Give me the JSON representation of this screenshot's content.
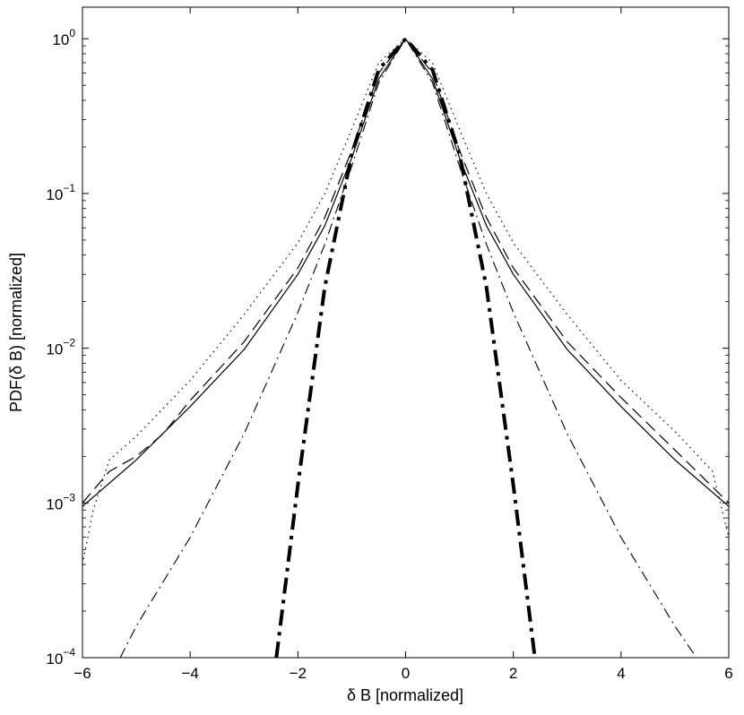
{
  "chart_data": {
    "type": "line",
    "title": "",
    "xlabel": "δ B [normalized]",
    "ylabel": "PDF(δ B) [normalized]",
    "xlim": [
      -6,
      6
    ],
    "ylim": [
      0.0001,
      1.6
    ],
    "yscale": "log",
    "grid": false,
    "legend": "none",
    "x_ticks": [
      {
        "value": -6,
        "label": "−6"
      },
      {
        "value": -4,
        "label": "−4"
      },
      {
        "value": -2,
        "label": "−2"
      },
      {
        "value": 0,
        "label": "0"
      },
      {
        "value": 2,
        "label": "2"
      },
      {
        "value": 4,
        "label": "4"
      },
      {
        "value": 6,
        "label": "6"
      }
    ],
    "y_ticks": [
      {
        "value": 1,
        "base": "10",
        "exp": "0"
      },
      {
        "value": 0.1,
        "base": "10",
        "exp": "−1"
      },
      {
        "value": 0.01,
        "base": "10",
        "exp": "−2"
      },
      {
        "value": 0.001,
        "base": "10",
        "exp": "−3"
      },
      {
        "value": 0.0001,
        "base": "10",
        "exp": "−4"
      }
    ],
    "series": [
      {
        "style": "solid",
        "color": "#000000",
        "x": [
          -6,
          -5,
          -4,
          -3,
          -2,
          -1.5,
          -1,
          -0.5,
          0,
          0.5,
          1,
          1.5,
          2,
          3,
          4,
          5,
          6
        ],
        "y": [
          0.00095,
          0.0019,
          0.0042,
          0.0098,
          0.03,
          0.062,
          0.17,
          0.55,
          1.0,
          0.55,
          0.17,
          0.062,
          0.03,
          0.0098,
          0.0042,
          0.0019,
          0.00095
        ]
      },
      {
        "style": "dashed",
        "color": "#000000",
        "x": [
          -6,
          -5.5,
          -5,
          -4.5,
          -4,
          -3,
          -2,
          -1.5,
          -1,
          -0.5,
          0,
          0.5,
          1,
          1.5,
          2,
          3,
          4,
          5,
          6
        ],
        "y": [
          0.001,
          0.0016,
          0.002,
          0.0028,
          0.0046,
          0.011,
          0.033,
          0.07,
          0.19,
          0.6,
          1.0,
          0.6,
          0.19,
          0.07,
          0.033,
          0.011,
          0.0048,
          0.0022,
          0.001
        ]
      },
      {
        "style": "dotted",
        "color": "#000000",
        "x": [
          -6,
          -5.8,
          -5.5,
          -5,
          -4,
          -3,
          -2,
          -1.5,
          -1,
          -0.5,
          0,
          0.5,
          1,
          1.5,
          2,
          3,
          4,
          5,
          5.7,
          6
        ],
        "y": [
          0.0004,
          0.0009,
          0.0019,
          0.0027,
          0.0062,
          0.0165,
          0.048,
          0.1,
          0.26,
          0.7,
          1.0,
          0.7,
          0.26,
          0.1,
          0.048,
          0.0165,
          0.0062,
          0.0029,
          0.0016,
          0.0006
        ]
      },
      {
        "style": "dashdot-thin",
        "color": "#000000",
        "x": [
          -5.3,
          -5,
          -4,
          -3,
          -2,
          -1.5,
          -1,
          -0.5,
          0,
          0.5,
          1,
          1.5,
          2,
          3,
          4,
          5,
          5.4
        ],
        "y": [
          0.0001,
          0.00016,
          0.0006,
          0.0028,
          0.017,
          0.047,
          0.15,
          0.52,
          1.0,
          0.52,
          0.15,
          0.047,
          0.017,
          0.0028,
          0.0006,
          0.00016,
          0.0001
        ]
      },
      {
        "style": "dashdot-thick",
        "color": "#000000",
        "x": [
          -2.4,
          -2,
          -1.5,
          -1,
          -0.5,
          0,
          0.5,
          1,
          1.5,
          2,
          2.4
        ],
        "y": [
          0.0001,
          0.0013,
          0.025,
          0.18,
          0.63,
          1.0,
          0.63,
          0.18,
          0.025,
          0.0013,
          0.0001
        ]
      }
    ]
  }
}
